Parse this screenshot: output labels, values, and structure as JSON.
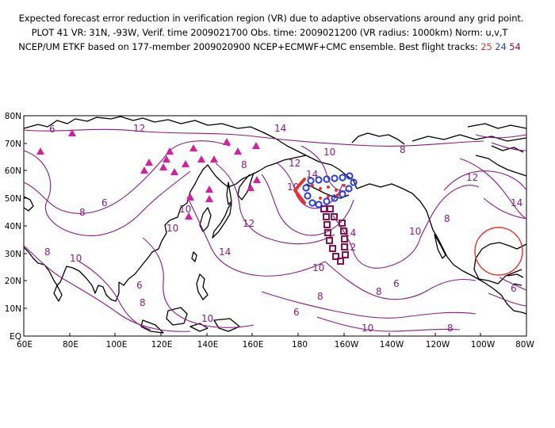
{
  "header": {
    "line1": "Expected forecast error reduction in verification region (VR) due to adaptive observations around any grid point.",
    "line2": "PLOT 41 VR: 31N, -93W, Verif. time 2009021700 Obs. time: 2009021200 (VR radius: 1000km) Norm: u,v,T",
    "line3_prefix": "NCEP/UM ETKF based on 177-member 2009020900 NCEP+ECMWF+CMC ensemble. Best flight tracks:",
    "tracks": [
      {
        "id": "25",
        "color": "#e8342c"
      },
      {
        "id": "24",
        "color": "#2b3fd8"
      },
      {
        "id": "54",
        "color": "#8b1150"
      }
    ]
  },
  "map": {
    "lat_labels": [
      "80N",
      "70N",
      "60N",
      "50N",
      "40N",
      "30N",
      "20N",
      "10N",
      "EQ"
    ],
    "lon_labels": [
      "60E",
      "80E",
      "100E",
      "120E",
      "140E",
      "160E",
      "180",
      "160W",
      "140W",
      "120W",
      "100W",
      "80W"
    ],
    "contour_color": "#8a1a86",
    "contour_labels": [
      "6",
      "8",
      "10",
      "12",
      "14",
      "10",
      "8",
      "6",
      "8",
      "10",
      "12",
      "14",
      "10",
      "8",
      "6",
      "8",
      "10",
      "12",
      "14",
      "10",
      "12",
      "14",
      "10",
      "8",
      "6",
      "10",
      "8",
      "6",
      "8",
      "10",
      "12",
      "14",
      "8",
      "6"
    ],
    "verification_region_color": "#e8342c",
    "rawinsonde_marker": "magenta-triangle",
    "rawinsonde_color": "#d61f9f"
  }
}
